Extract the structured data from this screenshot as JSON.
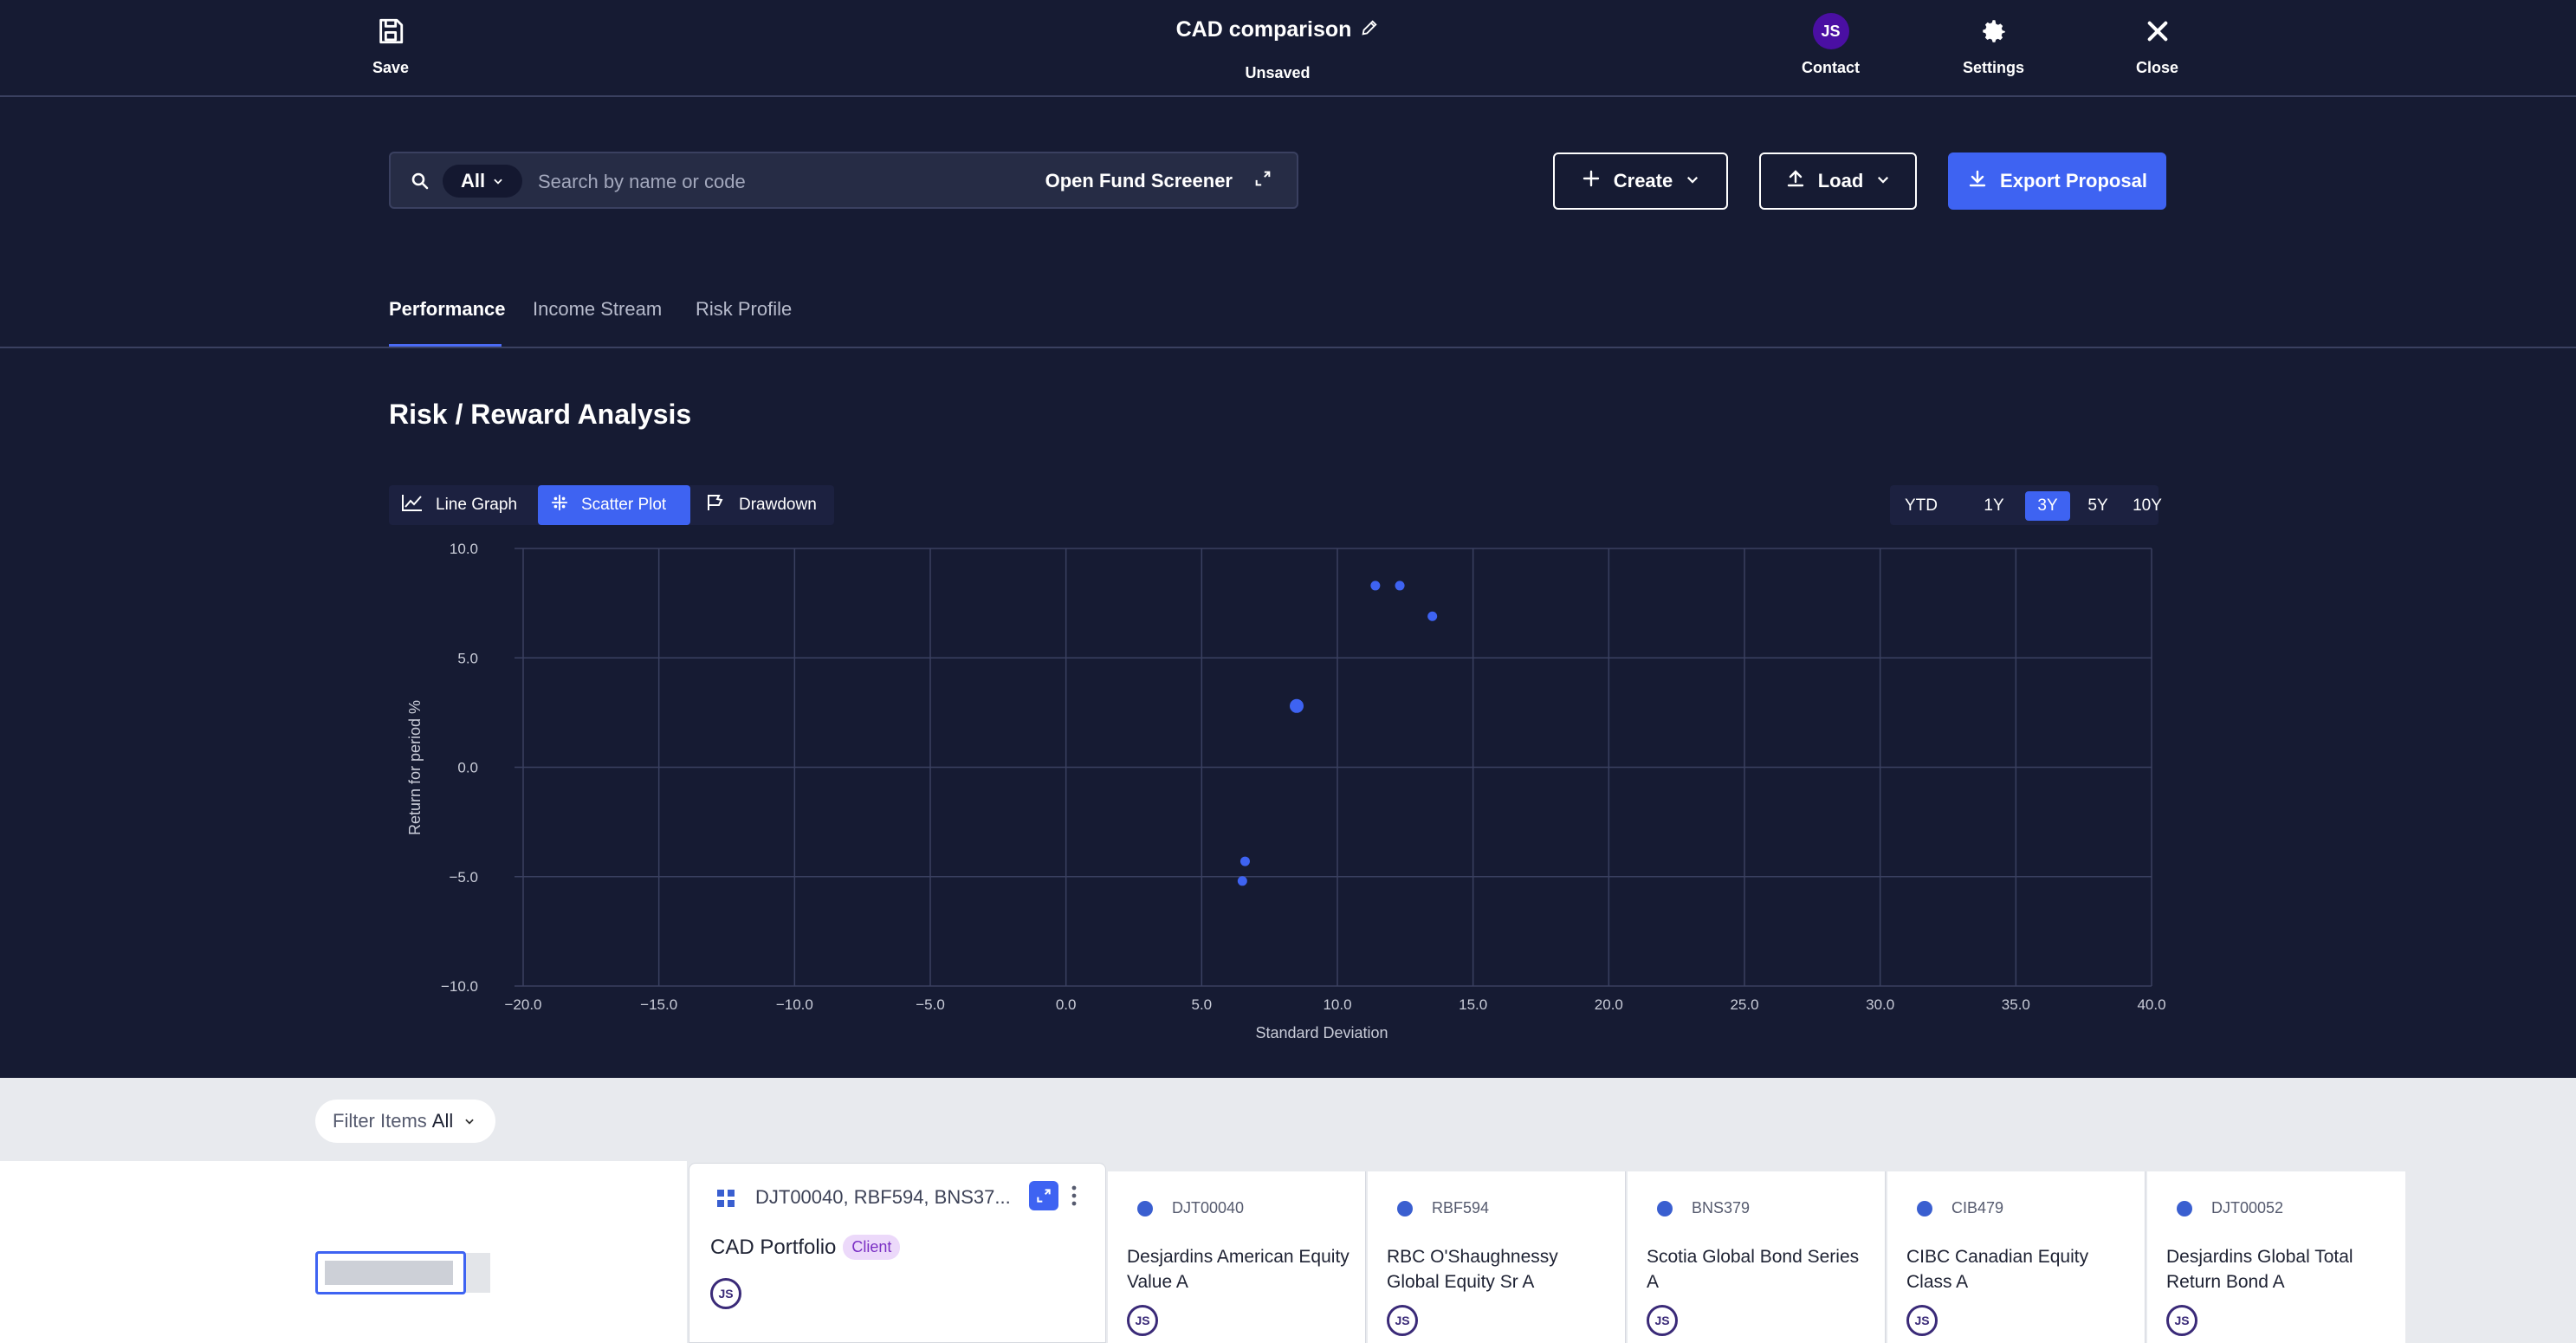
{
  "topbar": {
    "save_label": "Save",
    "title": "CAD comparison",
    "status": "Unsaved",
    "contact_initials": "JS",
    "contact_label": "Contact",
    "settings_label": "Settings",
    "close_label": "Close"
  },
  "search": {
    "scope": "All",
    "placeholder": "Search by name or code",
    "screener_label": "Open Fund Screener"
  },
  "actions": {
    "create_label": "Create",
    "load_label": "Load",
    "export_label": "Export Proposal"
  },
  "tabs": [
    {
      "label": "Performance",
      "active": true
    },
    {
      "label": "Income Stream",
      "active": false
    },
    {
      "label": "Risk Profile",
      "active": false
    }
  ],
  "section_title": "Risk / Reward Analysis",
  "view_modes": [
    {
      "label": "Line Graph",
      "icon": "line-graph-icon",
      "active": false
    },
    {
      "label": "Scatter Plot",
      "icon": "scatter-plot-icon",
      "active": true
    },
    {
      "label": "Drawdown",
      "icon": "drawdown-icon",
      "active": false
    }
  ],
  "periods": [
    {
      "label": "YTD",
      "active": false
    },
    {
      "label": "1Y",
      "active": false
    },
    {
      "label": "3Y",
      "active": true
    },
    {
      "label": "5Y",
      "active": false
    },
    {
      "label": "10Y",
      "active": false
    }
  ],
  "chart_data": {
    "type": "scatter",
    "title": "",
    "xlabel": "Standard Deviation",
    "ylabel": "Return for period %",
    "xlim": [
      -20,
      40
    ],
    "ylim": [
      -10,
      10
    ],
    "xticks": [
      -20,
      -15,
      -10,
      -5,
      0,
      5,
      10,
      15,
      20,
      25,
      30,
      35,
      40
    ],
    "yticks": [
      10,
      5,
      0,
      -5,
      -10
    ],
    "xtick_labels": [
      "−20.0",
      "−15.0",
      "−10.0",
      "−5.0",
      "0.0",
      "5.0",
      "10.0",
      "15.0",
      "20.0",
      "25.0",
      "30.0",
      "35.0",
      "40.0"
    ],
    "ytick_labels": [
      "10.0",
      "5.0",
      "0.0",
      "−5.0",
      "−10.0"
    ],
    "grid": true,
    "color": "#3e63f2",
    "points": [
      {
        "name": "CAD Portfolio",
        "x": 8.5,
        "y": 2.8,
        "size": "large"
      },
      {
        "name": "DJT00040",
        "x": 11.4,
        "y": 8.3,
        "size": "small"
      },
      {
        "name": "RBF594",
        "x": 12.3,
        "y": 8.3,
        "size": "small"
      },
      {
        "name": "CIB479",
        "x": 13.5,
        "y": 6.9,
        "size": "small"
      },
      {
        "name": "BNS379",
        "x": 6.6,
        "y": -4.3,
        "size": "small"
      },
      {
        "name": "DJT00052",
        "x": 6.5,
        "y": -5.2,
        "size": "small"
      }
    ]
  },
  "filter": {
    "label": "Filter Items",
    "value": "All"
  },
  "portfolio": {
    "codes": "DJT00040, RBF594, BNS37...",
    "name": "CAD Portfolio",
    "badge": "Client",
    "initials": "JS"
  },
  "funds": [
    {
      "code": "DJT00040",
      "name": "Desjardins American Equity Value A",
      "initials": "JS"
    },
    {
      "code": "RBF594",
      "name": "RBC O'Shaughnessy Global Equity Sr A",
      "initials": "JS"
    },
    {
      "code": "BNS379",
      "name": "Scotia Global Bond Series A",
      "initials": "JS"
    },
    {
      "code": "CIB479",
      "name": "CIBC Canadian Equity Class A",
      "initials": "JS"
    },
    {
      "code": "DJT00052",
      "name": "Desjardins Global Total Return Bond A",
      "initials": "JS"
    }
  ]
}
